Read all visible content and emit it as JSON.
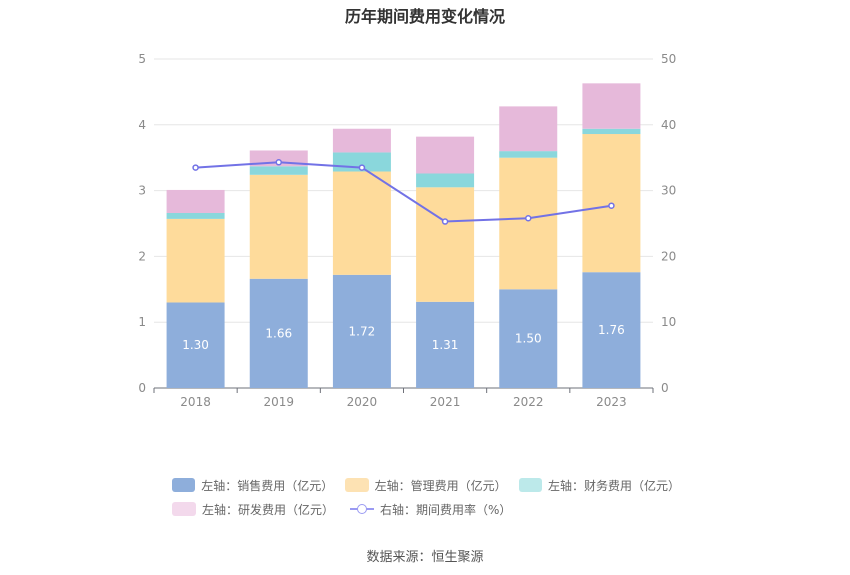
{
  "chart_data": {
    "type": "bar",
    "title": "历年期间费用变化情况",
    "categories": [
      "2018",
      "2019",
      "2020",
      "2021",
      "2022",
      "2023"
    ],
    "stacked": true,
    "left_axis": {
      "ylim": [
        0,
        5
      ],
      "ticks": [
        "0",
        "1",
        "2",
        "3",
        "4",
        "5"
      ]
    },
    "right_axis": {
      "ylim": [
        0,
        50
      ],
      "ticks": [
        "0",
        "10",
        "20",
        "30",
        "40",
        "50"
      ]
    },
    "grid": true,
    "legend_position": "bottom",
    "series": [
      {
        "name": "左轴：销售费用（亿元）",
        "type": "bar",
        "axis": "left",
        "color": "#8eaedb",
        "values": [
          1.3,
          1.66,
          1.72,
          1.31,
          1.5,
          1.76
        ],
        "labels": [
          "1.30",
          "1.66",
          "1.72",
          "1.31",
          "1.50",
          "1.76"
        ]
      },
      {
        "name": "左轴：管理费用（亿元）",
        "type": "bar",
        "axis": "left",
        "color": "#fedb9b",
        "values": [
          1.27,
          1.58,
          1.57,
          1.74,
          2.0,
          2.1
        ]
      },
      {
        "name": "左轴：财务费用（亿元）",
        "type": "bar",
        "axis": "left",
        "color": "#8ad7dc",
        "values": [
          0.09,
          0.13,
          0.29,
          0.21,
          0.1,
          0.08
        ]
      },
      {
        "name": "左轴：研发费用（亿元）",
        "type": "bar",
        "axis": "left",
        "color": "#e6b9da",
        "values": [
          0.35,
          0.24,
          0.36,
          0.56,
          0.68,
          0.69
        ]
      },
      {
        "name": "右轴：期间费用率（%）",
        "type": "line",
        "axis": "right",
        "color": "#7272e6",
        "values": [
          33.5,
          34.3,
          33.5,
          25.3,
          25.8,
          27.7
        ]
      }
    ]
  },
  "legend": {
    "items": [
      {
        "label": "左轴：销售费用（亿元）",
        "color": "#8eaedb"
      },
      {
        "label": "左轴：管理费用（亿元）",
        "color": "#fde2b3"
      },
      {
        "label": "左轴：财务费用（亿元）",
        "color": "#bce9ea"
      },
      {
        "label": "左轴：研发费用（亿元）",
        "color": "#f3d9ec"
      },
      {
        "label": "右轴：期间费用率（%）",
        "color": "#9a9af2"
      }
    ]
  },
  "source": "数据来源：恒生聚源"
}
